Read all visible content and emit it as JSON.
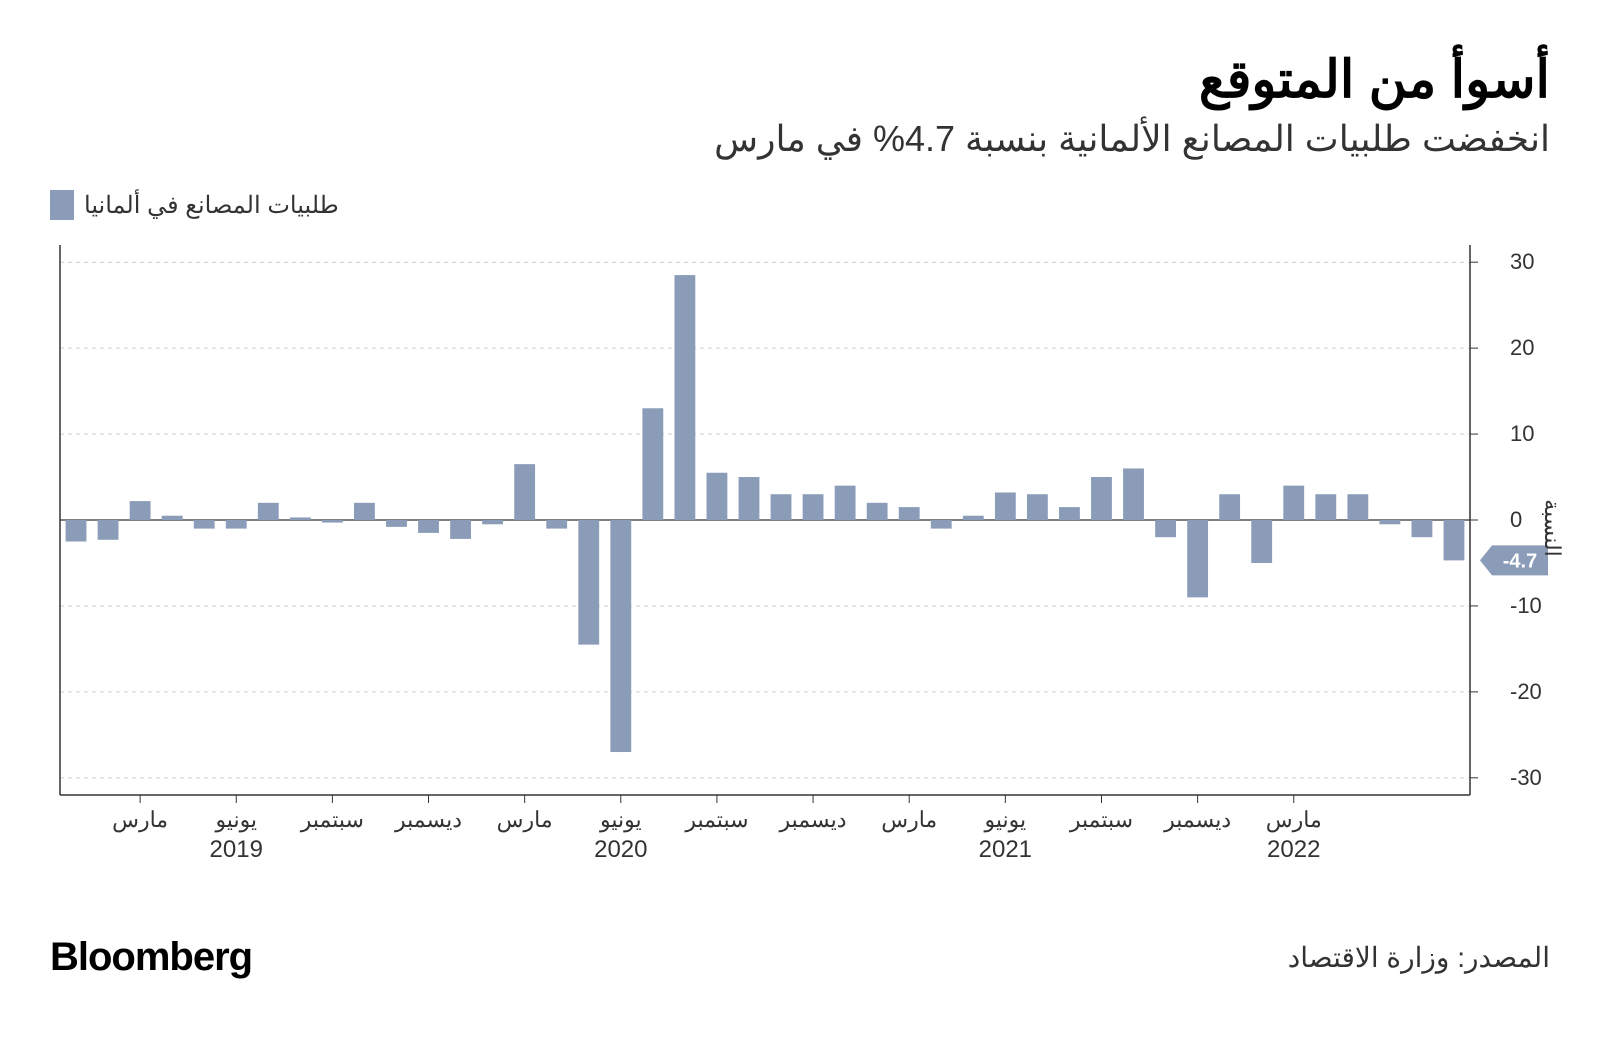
{
  "title": "أسوأ من المتوقع",
  "subtitle": "انخفضت طلبيات المصانع الألمانية بنسبة 4.7% في مارس",
  "legend_label": "طلبيات المصانع في ألمانيا",
  "y_axis_label": "النسبة",
  "source": "المصدر: وزارة الاقتصاد",
  "brand": "Bloomberg",
  "highlight_value": "-4.7",
  "chart": {
    "type": "bar",
    "bar_color": "#8a9cb8",
    "background_color": "#ffffff",
    "grid_color": "#cccccc",
    "axis_color": "#333333",
    "text_color": "#333333",
    "highlight_bg": "#8a9cb8",
    "highlight_text": "#ffffff",
    "ylim": [
      -32,
      32
    ],
    "yticks": [
      -30,
      -20,
      -10,
      0,
      10,
      20,
      30
    ],
    "tick_fontsize": 22,
    "title_fontsize": 52,
    "subtitle_fontsize": 36,
    "values": [
      -2.5,
      -2.3,
      2.2,
      0.5,
      -1.0,
      -1.0,
      2.0,
      0.3,
      -0.3,
      2.0,
      -0.8,
      -1.5,
      -2.2,
      -0.5,
      6.5,
      -1.0,
      -14.5,
      -27.0,
      13.0,
      28.5,
      5.5,
      5.0,
      3.0,
      3.0,
      4.0,
      2.0,
      1.5,
      -1.0,
      0.5,
      3.2,
      3.0,
      1.5,
      5.0,
      6.0,
      -2.0,
      -9.0,
      3.0,
      -5.0,
      4.0,
      3.0,
      3.0,
      -0.5,
      -2.0,
      -4.7
    ],
    "x_labels": [
      {
        "idx": 2,
        "label": "مارس"
      },
      {
        "idx": 5,
        "label": "يونيو",
        "year": "2019"
      },
      {
        "idx": 8,
        "label": "سبتمبر"
      },
      {
        "idx": 11,
        "label": "ديسمبر"
      },
      {
        "idx": 14,
        "label": "مارس"
      },
      {
        "idx": 17,
        "label": "يونيو",
        "year": "2020"
      },
      {
        "idx": 20,
        "label": "سبتمبر"
      },
      {
        "idx": 23,
        "label": "ديسمبر"
      },
      {
        "idx": 26,
        "label": "مارس"
      },
      {
        "idx": 29,
        "label": "يونيو",
        "year": "2021"
      },
      {
        "idx": 32,
        "label": "سبتمبر"
      },
      {
        "idx": 35,
        "label": "ديسمبر"
      },
      {
        "idx": 38,
        "label": "مارس",
        "year": "2022"
      }
    ]
  }
}
